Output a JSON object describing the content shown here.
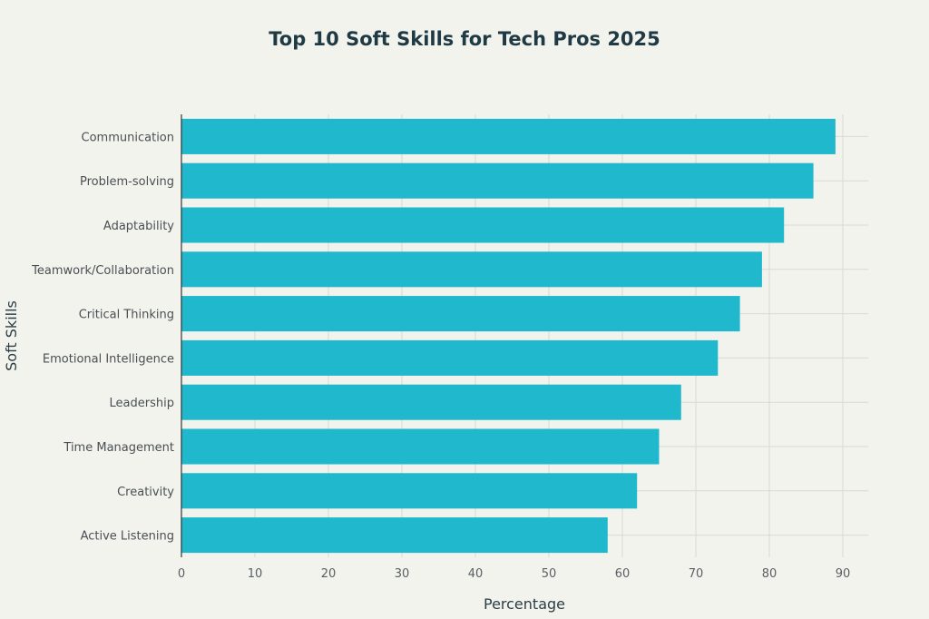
{
  "chart_data": {
    "type": "bar",
    "orientation": "horizontal",
    "title": "Top 10 Soft Skills for Tech Pros 2025",
    "xlabel": "Percentage",
    "ylabel": "Soft Skills",
    "categories": [
      "Communication",
      "Problem-solving",
      "Adaptability",
      "Teamwork/Collaboration",
      "Critical Thinking",
      "Emotional Intelligence",
      "Leadership",
      "Time Management",
      "Creativity",
      "Active Listening"
    ],
    "values": [
      89,
      86,
      82,
      79,
      76,
      73,
      68,
      65,
      62,
      58
    ],
    "xlim": [
      0,
      94
    ],
    "xticks": [
      0,
      10,
      20,
      30,
      40,
      50,
      60,
      70,
      80,
      90
    ],
    "grid": true,
    "bar_color": "#1fb8cd",
    "grid_color": "#d9d9d4",
    "axis_color": "#333333"
  }
}
